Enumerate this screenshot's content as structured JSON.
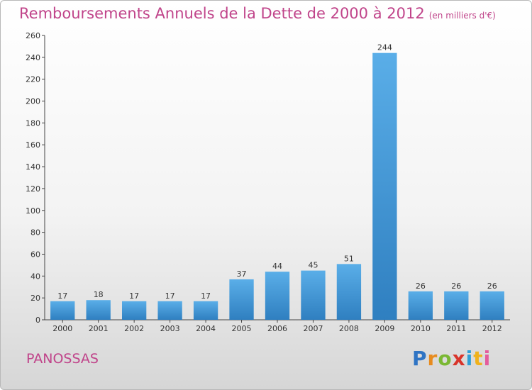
{
  "title": "Remboursements Annuels de la Dette de 2000 à 2012",
  "unit": "(en milliers d'€)",
  "commune": "PANOSSAS",
  "logo": {
    "p": "P",
    "r": "r",
    "o": "o",
    "x": "x",
    "i": "i",
    "t": "t",
    "i2": "i"
  },
  "colors": {
    "title": "#c0448a",
    "bar_top": "#5aaee8",
    "bar_bottom": "#2f7fc0"
  },
  "chart_data": {
    "type": "bar",
    "categories": [
      "2000",
      "2001",
      "2002",
      "2003",
      "2004",
      "2005",
      "2006",
      "2007",
      "2008",
      "2009",
      "2010",
      "2011",
      "2012"
    ],
    "values": [
      17,
      18,
      17,
      17,
      17,
      37,
      44,
      45,
      51,
      244,
      26,
      26,
      26
    ],
    "ylim": [
      0,
      260
    ],
    "yticks": [
      0,
      20,
      40,
      60,
      80,
      100,
      120,
      140,
      160,
      180,
      200,
      220,
      240,
      260
    ],
    "grid": false,
    "legend": "none"
  }
}
